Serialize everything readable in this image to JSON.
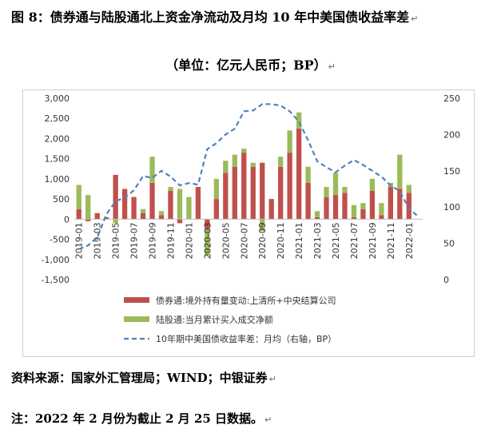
{
  "header": {
    "title": "图 8：债券通与陆股通北上资金净流动及月均 10 年中美国债收益率差",
    "subtitle": "（单位：亿元人民币；BP）"
  },
  "footer": {
    "source": "资料来源：国家外汇管理局；WIND；中银证券",
    "note": "注：2022 年 2 月份为截止 2 月 25 日数据。"
  },
  "chart_data": {
    "type": "bar",
    "categories": [
      "2019-01",
      "2019-02",
      "2019-03",
      "2019-04",
      "2019-05",
      "2019-06",
      "2019-07",
      "2019-08",
      "2019-09",
      "2019-10",
      "2019-11",
      "2019-12",
      "2020-01",
      "2020-02",
      "2020-03",
      "2020-04",
      "2020-05",
      "2020-06",
      "2020-07",
      "2020-08",
      "2020-09",
      "2020-10",
      "2020-11",
      "2020-12",
      "2021-01",
      "2021-02",
      "2021-03",
      "2021-04",
      "2021-05",
      "2021-06",
      "2021-07",
      "2021-08",
      "2021-09",
      "2021-10",
      "2021-11",
      "2021-12",
      "2022-01",
      "2022-02"
    ],
    "tick_labels": [
      "2019-01",
      "2019-03",
      "2019-05",
      "2019-07",
      "2019-09",
      "2019-11",
      "2020-01",
      "2020-03",
      "2020-05",
      "2020-07",
      "2020-09",
      "2020-11",
      "2021-01",
      "2021-03",
      "2021-05",
      "2021-07",
      "2021-09",
      "2021-11",
      "2022-01"
    ],
    "series": [
      {
        "name": "债券通:境外持有量变动:上清所+中央结算公司",
        "color": "#c0504d",
        "axis": "left",
        "values": [
          250,
          -50,
          150,
          50,
          1100,
          750,
          550,
          150,
          900,
          100,
          700,
          -100,
          0,
          800,
          -250,
          500,
          1150,
          1300,
          1650,
          1300,
          1400,
          500,
          1300,
          1650,
          2250,
          900,
          50,
          550,
          600,
          650,
          50,
          250,
          700,
          100,
          800,
          750,
          650,
          0
        ]
      },
      {
        "name": "陆股通:当月累计买入成交净额",
        "color": "#9bbb59",
        "axis": "left",
        "values": [
          600,
          600,
          0,
          0,
          -100,
          0,
          0,
          100,
          650,
          100,
          100,
          750,
          550,
          0,
          -650,
          500,
          300,
          300,
          100,
          100,
          -300,
          0,
          250,
          550,
          400,
          400,
          150,
          250,
          550,
          150,
          300,
          150,
          300,
          300,
          100,
          850,
          200,
          0
        ]
      },
      {
        "name": "10年期中美国债收益率差：月均（右轴，BP）",
        "color": "#4f81bd",
        "axis": "right",
        "style": "dashed",
        "values": [
          42,
          47,
          58,
          90,
          108,
          113,
          123,
          143,
          140,
          150,
          142,
          130,
          133,
          131,
          180,
          188,
          200,
          208,
          232,
          233,
          242,
          242,
          240,
          232,
          218,
          192,
          163,
          155,
          148,
          157,
          165,
          158,
          150,
          142,
          130,
          122,
          98,
          87
        ]
      }
    ],
    "left_axis": {
      "min": -1500,
      "max": 3000,
      "step": 500,
      "tick_labels": [
        "3,000",
        "2,500",
        "2,000",
        "1,500",
        "1,000",
        "500",
        "0",
        "-500",
        "-1,000",
        "-1,500"
      ]
    },
    "right_axis": {
      "min": 0,
      "max": 250,
      "step": 50,
      "tick_labels": [
        "250",
        "200",
        "150",
        "100",
        "50",
        "0"
      ]
    },
    "legend_position": "bottom",
    "legend": [
      {
        "label": "债券通:境外持有量变动:上清所+中央结算公司",
        "kind": "bar",
        "color": "#c0504d"
      },
      {
        "label": "陆股通:当月累计买入成交净额",
        "kind": "bar",
        "color": "#9bbb59"
      },
      {
        "label": "10年期中美国债收益率差：月均（右轴，BP）",
        "kind": "dashed-line",
        "color": "#4f81bd"
      }
    ],
    "grid": false
  }
}
